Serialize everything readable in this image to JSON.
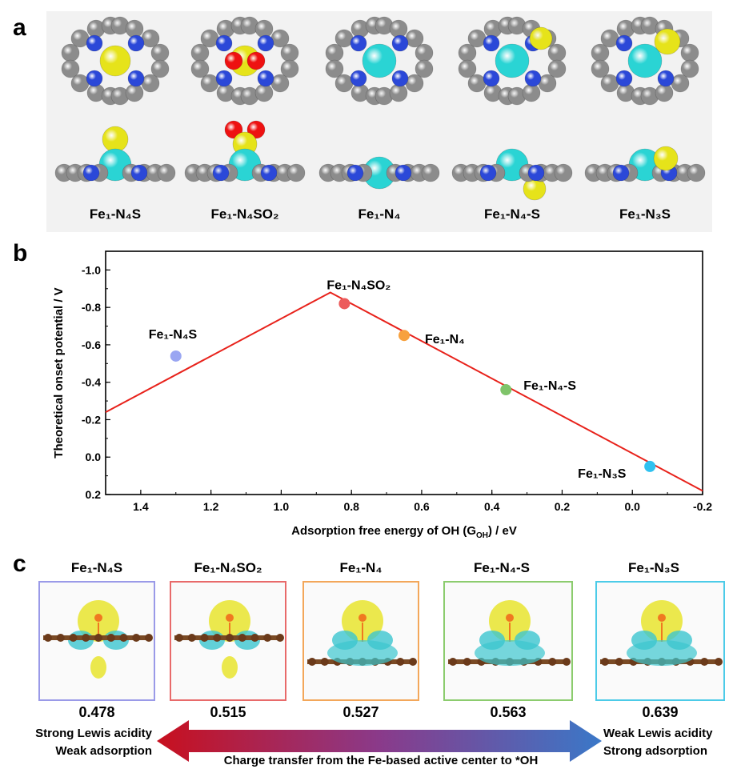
{
  "panel_a": {
    "letter": "a",
    "structures": [
      {
        "label": "Fe₁-N₄S",
        "colors": {
          "ligand": "#e6e31a"
        }
      },
      {
        "label": "Fe₁-N₄SO₂"
      },
      {
        "label": "Fe₁-N₄"
      },
      {
        "label": "Fe₁-N₄-S"
      },
      {
        "label": "Fe₁-N₃S"
      }
    ],
    "colors": {
      "carbon": "#8c8c8c",
      "nitrogen": "#2b48d8",
      "iron": "#2ad4d4",
      "sulfur": "#e6e31a",
      "oxygen": "#ee1111"
    }
  },
  "panel_b": {
    "letter": "b"
  },
  "chart_data": {
    "type": "scatter",
    "title": "",
    "xlabel": "Adsorption free energy of OH (G",
    "xlabel_sub": "OH",
    "xlabel_tail": ") / eV",
    "ylabel": "Theoretical onset potential / V",
    "xlim": [
      1.5,
      -0.2
    ],
    "ylim": [
      0.2,
      -1.1
    ],
    "x_ticks": [
      "1.4",
      "1.2",
      "1.0",
      "0.8",
      "0.6",
      "0.4",
      "0.2",
      "0.0",
      "-0.2"
    ],
    "y_ticks": [
      "-1.0",
      "-0.8",
      "-0.6",
      "-0.4",
      "-0.2",
      "0.0",
      "0.2"
    ],
    "volcano_line": {
      "color": "#e8231c",
      "points": [
        [
          1.5,
          -0.24
        ],
        [
          0.86,
          -0.88
        ],
        [
          -0.2,
          0.18
        ]
      ]
    },
    "points": [
      {
        "label": "Fe₁-N₄S",
        "x": 1.3,
        "y": -0.54,
        "color": "#9aa6f2"
      },
      {
        "label": "Fe₁-N₄SO₂",
        "x": 0.82,
        "y": -0.82,
        "color": "#ec5b5b"
      },
      {
        "label": "Fe₁-N₄",
        "x": 0.65,
        "y": -0.65,
        "color": "#f7a13e"
      },
      {
        "label": "Fe₁-N₄-S",
        "x": 0.36,
        "y": -0.36,
        "color": "#7fc46a"
      },
      {
        "label": "Fe₁-N₃S",
        "x": -0.05,
        "y": 0.05,
        "color": "#2fc1f0"
      }
    ]
  },
  "panel_c": {
    "letter": "c",
    "items": [
      {
        "title": "Fe₁-N₄S",
        "value": "0.478",
        "border": "#9a9ae8"
      },
      {
        "title": "Fe₁-N₄SO₂",
        "value": "0.515",
        "border": "#e86a6a"
      },
      {
        "title": "Fe₁-N₄",
        "value": "0.527",
        "border": "#f3a75a"
      },
      {
        "title": "Fe₁-N₄-S",
        "value": "0.563",
        "border": "#8ccc6e"
      },
      {
        "title": "Fe₁-N₃S",
        "value": "0.639",
        "border": "#4ccbe8"
      }
    ],
    "left_note_1": "Strong Lewis acidity",
    "left_note_2": "Weak adsorption",
    "right_note_1": "Weak Lewis acidity",
    "right_note_2": "Strong adsorption",
    "arrow_text": "Charge transfer from the Fe-based active center to *OH",
    "arrow_colors": {
      "left": "#c8101e",
      "right": "#3a78c8"
    }
  }
}
